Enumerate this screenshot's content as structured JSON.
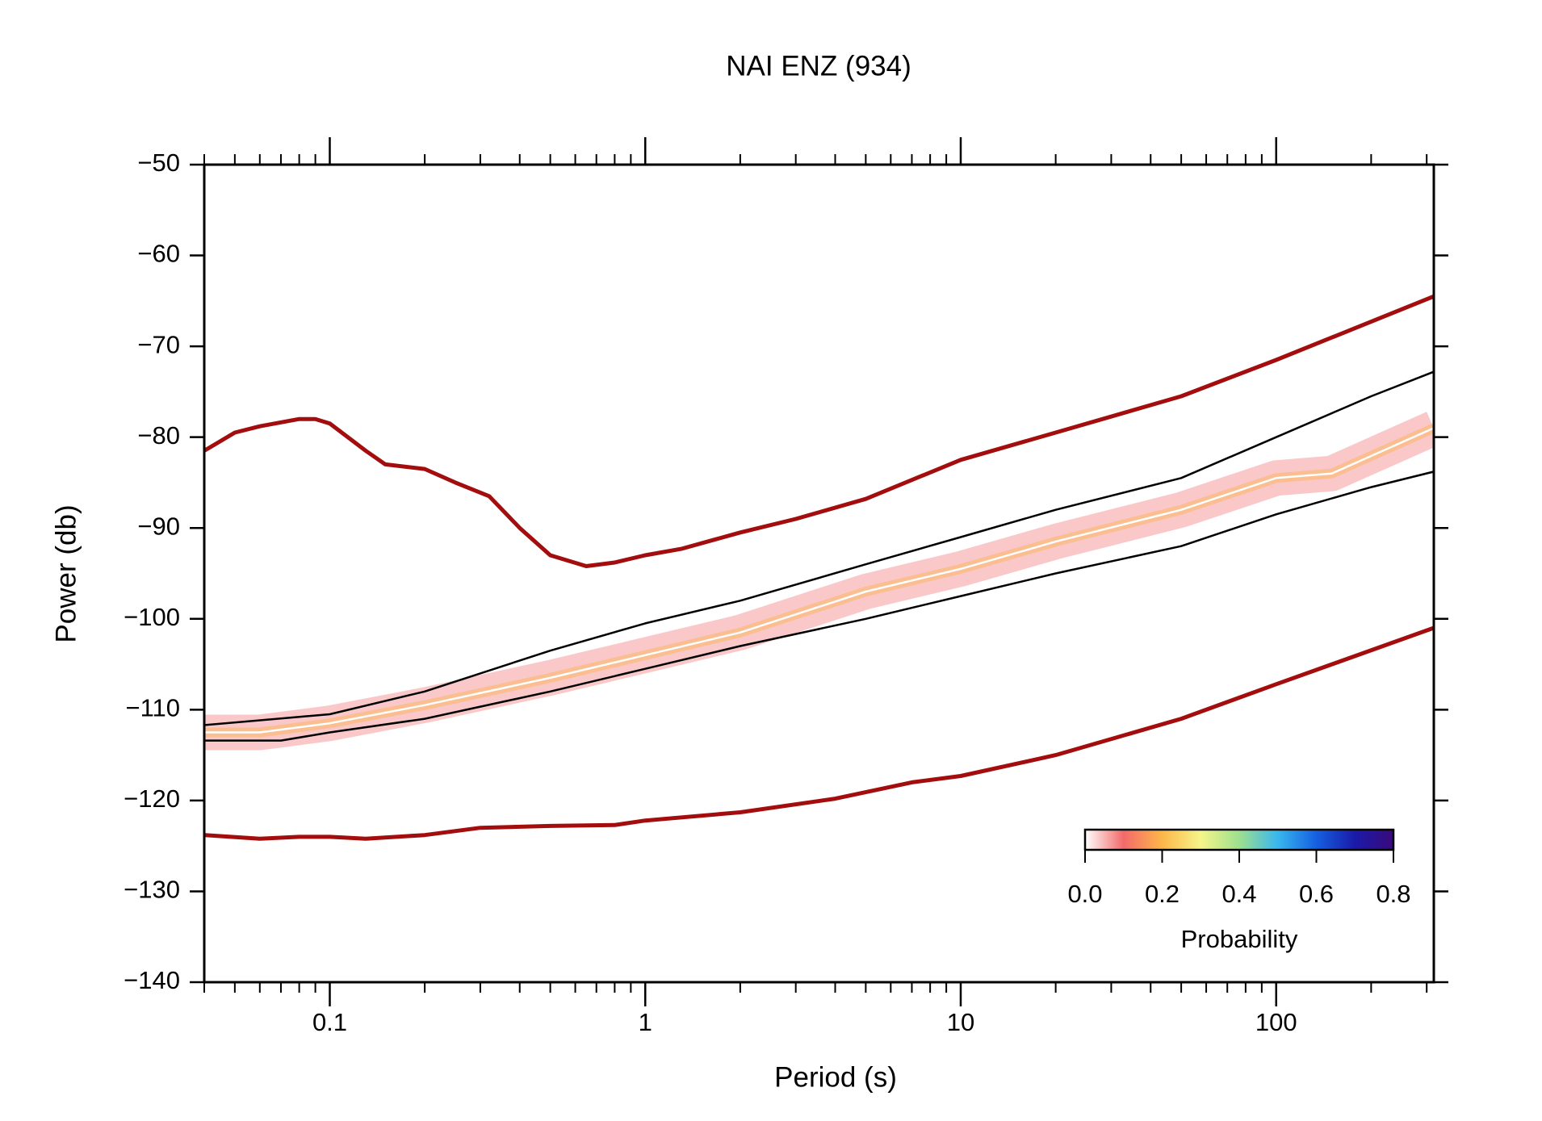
{
  "chart_data": {
    "type": "line",
    "title": "NAI ENZ (934)",
    "x_label": "Period (s)",
    "y_label": "Power (db)",
    "xscale": "log",
    "xlim": [
      0.04,
      316
    ],
    "xticks": [
      0.1,
      1,
      10,
      100
    ],
    "xminorticks": [
      0.04,
      0.05,
      0.06,
      0.07,
      0.08,
      0.09,
      0.2,
      0.3,
      0.4,
      0.5,
      0.6,
      0.7,
      0.8,
      0.9,
      2,
      3,
      4,
      5,
      6,
      7,
      8,
      9,
      20,
      30,
      40,
      50,
      60,
      70,
      80,
      90,
      200,
      300
    ],
    "ylim": [
      -140,
      -50
    ],
    "yticks": [
      {
        "value": -140,
        "label": "−140"
      },
      {
        "value": -130,
        "label": "−130"
      },
      {
        "value": -120,
        "label": "−120"
      },
      {
        "value": -110,
        "label": "−110"
      },
      {
        "value": -100,
        "label": "−100"
      },
      {
        "value": -90,
        "label": "−90"
      },
      {
        "value": -80,
        "label": "−80"
      },
      {
        "value": -70,
        "label": "−70"
      },
      {
        "value": -60,
        "label": "−60"
      },
      {
        "value": -50,
        "label": "−50"
      }
    ],
    "series": [
      {
        "color": "#a30d0d",
        "width": 5,
        "x": [
          0.04,
          0.05,
          0.06,
          0.08,
          0.09,
          0.1,
          0.13,
          0.15,
          0.2,
          0.25,
          0.32,
          0.4,
          0.5,
          0.65,
          0.8,
          1,
          1.3,
          2,
          3,
          5,
          10,
          20,
          50,
          100,
          316
        ],
        "values": [
          -81.5,
          -79.5,
          -78.8,
          -78,
          -78,
          -78.5,
          -81.5,
          -83,
          -83.5,
          -85,
          -86.5,
          -90,
          -93,
          -94.2,
          -93.8,
          -93,
          -92.3,
          -90.5,
          -89,
          -86.8,
          -82.5,
          -79.5,
          -75.5,
          -71.5,
          -64.5
        ]
      },
      {
        "color": "#a30d0d",
        "width": 5,
        "x": [
          0.04,
          0.06,
          0.08,
          0.1,
          0.13,
          0.2,
          0.3,
          0.5,
          0.8,
          1,
          2,
          4,
          7,
          10,
          20,
          50,
          100,
          316
        ],
        "values": [
          -123.8,
          -124.2,
          -124,
          -124,
          -124.2,
          -123.8,
          -123,
          -122.8,
          -122.7,
          -122.2,
          -121.3,
          -119.8,
          -118,
          -117.3,
          -115,
          -111,
          -107.2,
          -101
        ]
      },
      {
        "color": "#ffffff",
        "width": 2.5,
        "halo": "#f59a9a",
        "x": [
          0.04,
          0.06,
          0.1,
          0.2,
          0.5,
          1,
          2,
          5,
          10,
          20,
          50,
          100,
          150,
          316
        ],
        "values": [
          -112.5,
          -112.5,
          -111.5,
          -109.5,
          -106.5,
          -104,
          -101.5,
          -97,
          -94.5,
          -91.5,
          -88,
          -84.5,
          -84,
          -79
        ]
      },
      {
        "color": "#000000",
        "width": 2.5,
        "x": [
          0.04,
          0.1,
          0.2,
          0.5,
          1,
          2,
          5,
          10,
          20,
          50,
          100,
          200,
          316
        ],
        "values": [
          -111.7,
          -110.5,
          -108,
          -103.5,
          -100.5,
          -98,
          -94,
          -91,
          -88,
          -84.5,
          -80,
          -75.5,
          -72.8
        ]
      },
      {
        "color": "#000000",
        "width": 2.5,
        "x": [
          0.04,
          0.07,
          0.1,
          0.2,
          0.5,
          1,
          2,
          5,
          10,
          20,
          50,
          100,
          200,
          316
        ],
        "values": [
          -113.4,
          -113.4,
          -112.5,
          -111,
          -108,
          -105.5,
          -103,
          -100,
          -97.5,
          -95,
          -92,
          -88.5,
          -85.5,
          -83.8
        ]
      }
    ],
    "colorbar": {
      "label": "Probability",
      "clim": [
        0,
        0.8
      ],
      "ticks": [
        {
          "value": 0,
          "label": "0.0"
        },
        {
          "value": 0.2,
          "label": "0.2"
        },
        {
          "value": 0.4,
          "label": "0.4"
        },
        {
          "value": 0.6,
          "label": "0.6"
        },
        {
          "value": 0.8,
          "label": "0.8"
        }
      ],
      "colors": [
        "#ffffff",
        "#f26a6a",
        "#fdb64a",
        "#f5f58a",
        "#9ee08f",
        "#39b6ef",
        "#1560e0",
        "#1a1aa8",
        "#3a0a7a"
      ]
    }
  }
}
